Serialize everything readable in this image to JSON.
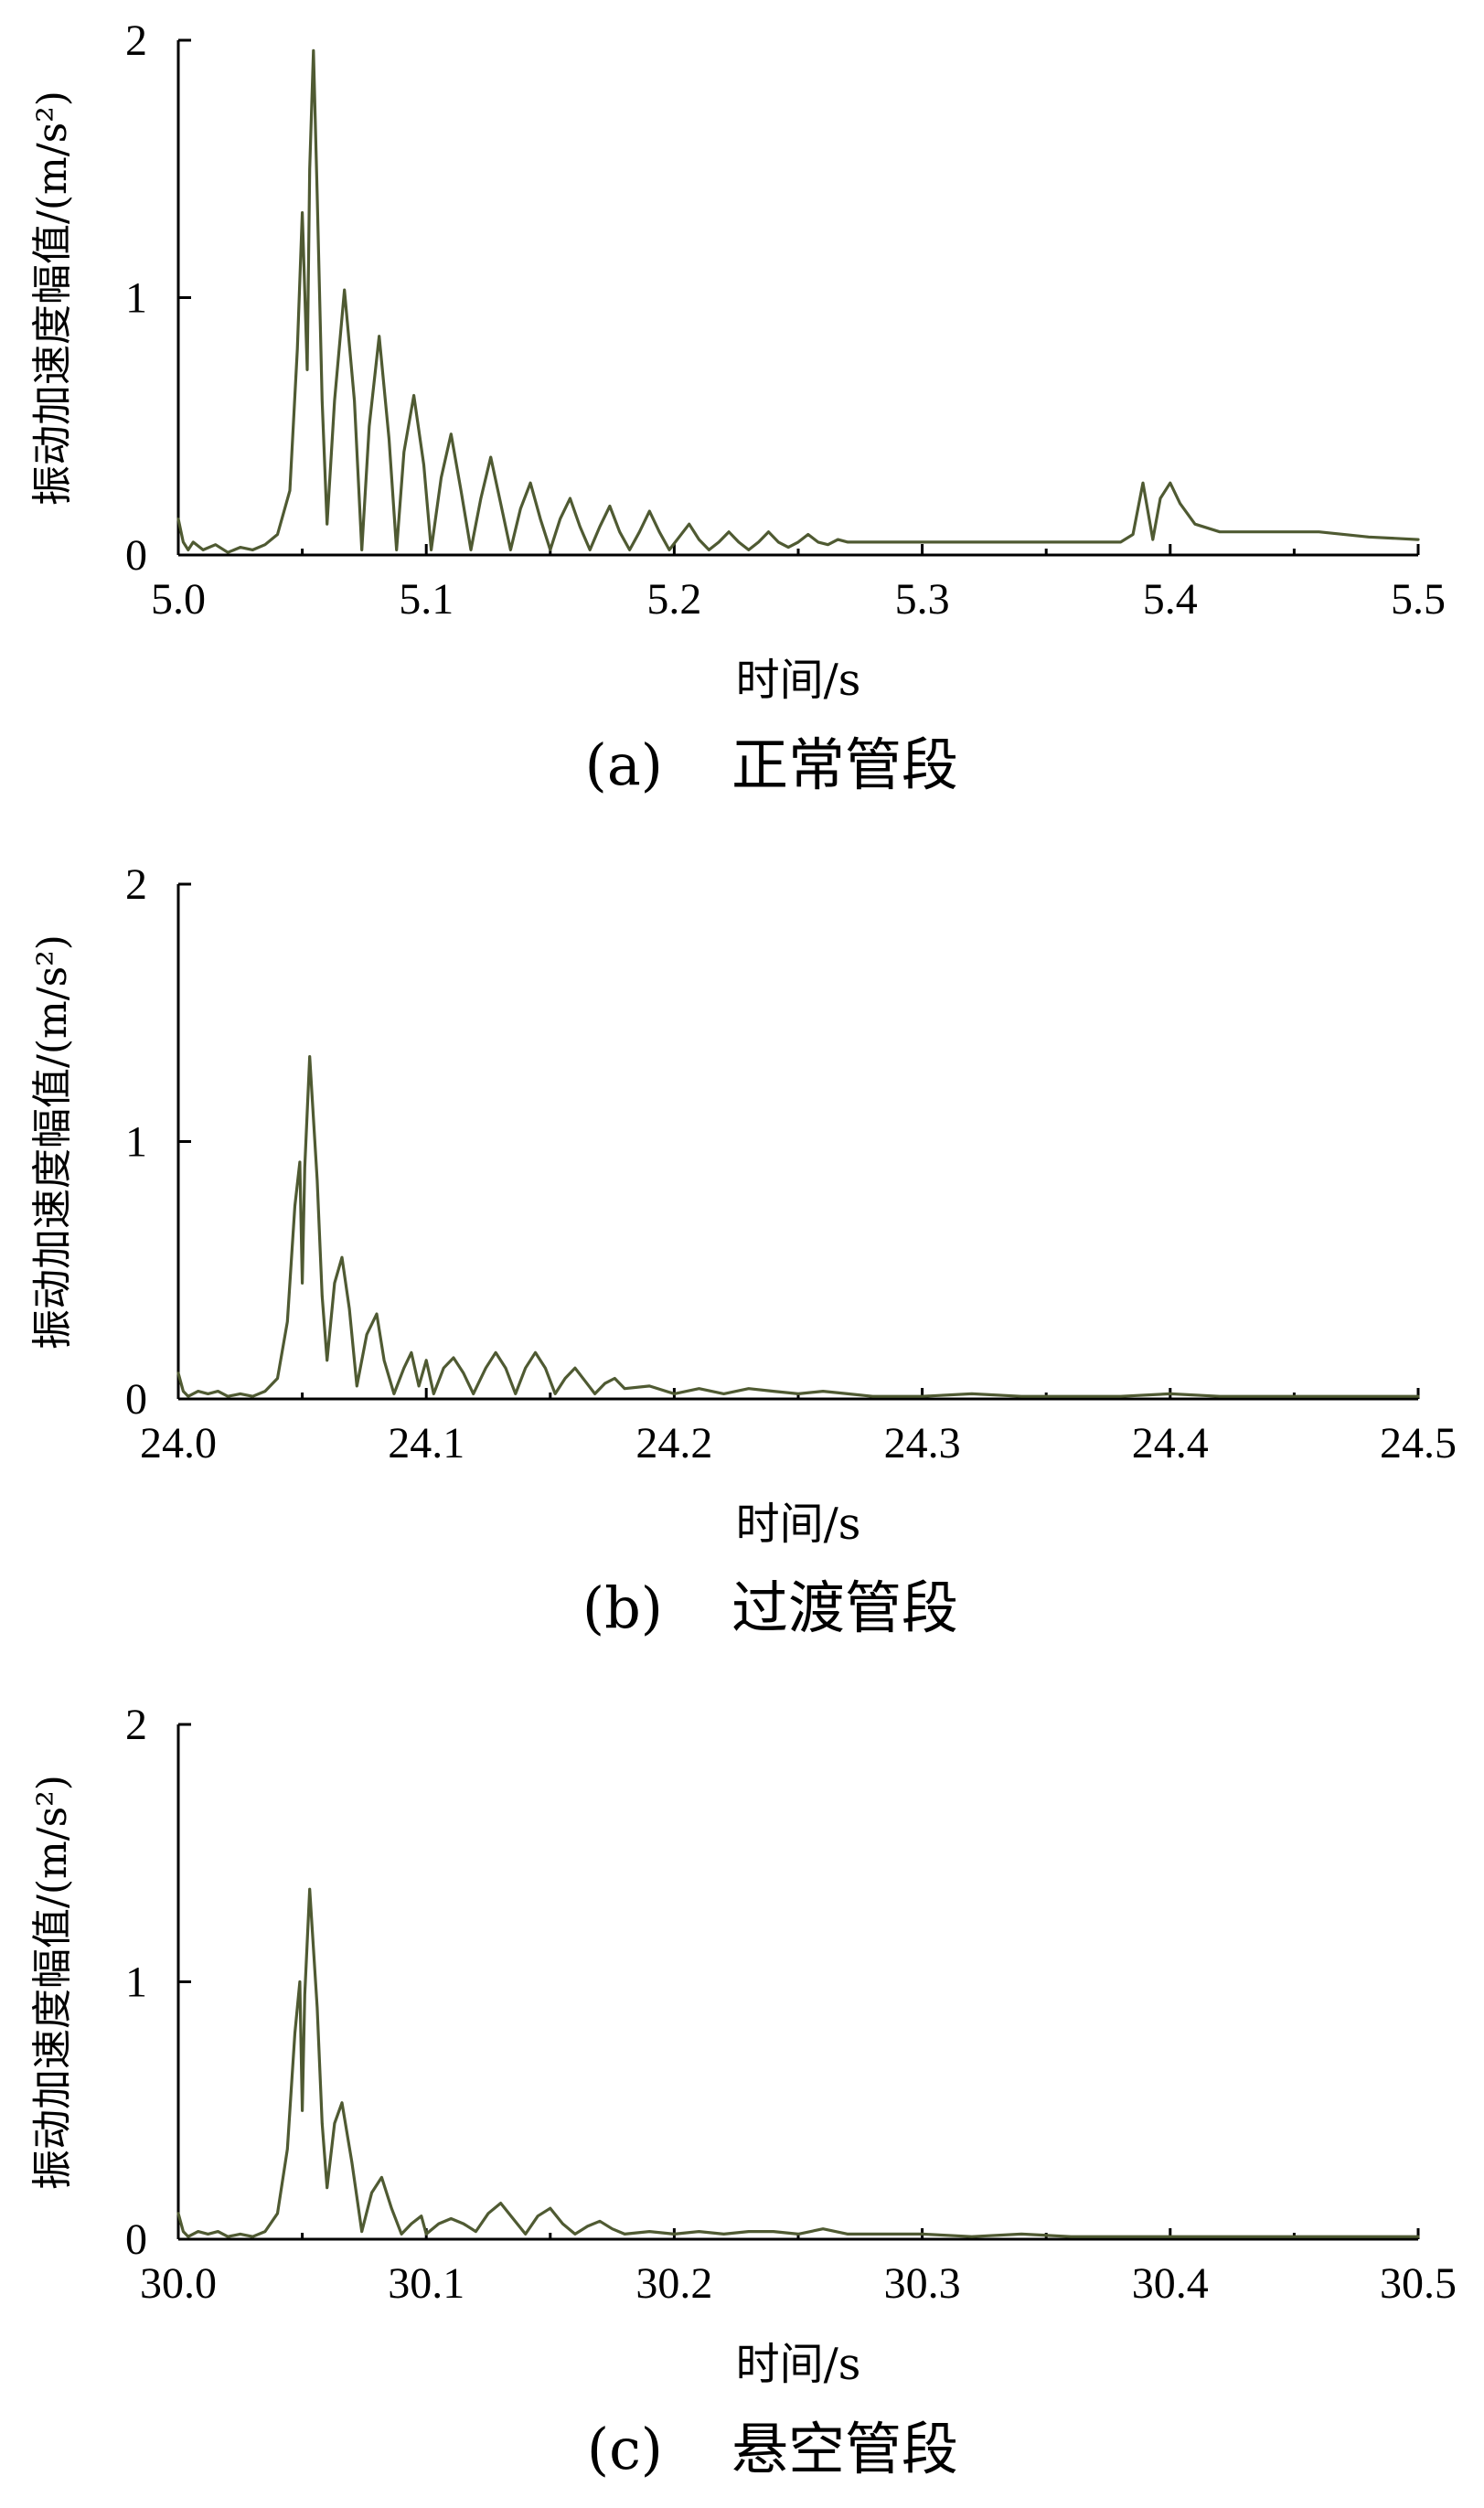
{
  "figure": {
    "panels": [
      {
        "caption_label": "(a)",
        "caption_text": "正常管段",
        "xlabel": "时间/s",
        "ylabel": "振动加速度幅值/(m/s²)",
        "xticks": [
          "5.0",
          "5.1",
          "5.2",
          "5.3",
          "5.4",
          "5.5"
        ],
        "yticks": [
          "0",
          "1",
          "2"
        ]
      },
      {
        "caption_label": "(b)",
        "caption_text": "过渡管段",
        "xlabel": "时间/s",
        "ylabel": "振动加速度幅值/(m/s²)",
        "xticks": [
          "24.0",
          "24.1",
          "24.2",
          "24.3",
          "24.4",
          "24.5"
        ],
        "yticks": [
          "0",
          "1",
          "2"
        ]
      },
      {
        "caption_label": "(c)",
        "caption_text": "悬空管段",
        "xlabel": "时间/s",
        "ylabel": "振动加速度幅值/(m/s²)",
        "xticks": [
          "30.0",
          "30.1",
          "30.2",
          "30.3",
          "30.4",
          "30.5"
        ],
        "yticks": [
          "0",
          "1",
          "2"
        ]
      }
    ]
  },
  "chart_data": [
    {
      "type": "line",
      "title": "(a) 正常管段",
      "xlabel": "时间/s",
      "ylabel": "振动加速度幅值/(m/s²)",
      "xlim": [
        5.0,
        5.5
      ],
      "ylim": [
        0,
        2
      ],
      "grid": false,
      "line_color": "#4f5a32",
      "series": [
        {
          "x": [
            5.0,
            5.002,
            5.004,
            5.006,
            5.01,
            5.015,
            5.02,
            5.025,
            5.03,
            5.035,
            5.04,
            5.045,
            5.048,
            5.05,
            5.052,
            5.053,
            5.0545,
            5.056,
            5.058,
            5.06,
            5.063,
            5.067,
            5.071,
            5.074,
            5.077,
            5.081,
            5.085,
            5.088,
            5.091,
            5.095,
            5.099,
            5.102,
            5.106,
            5.11,
            5.114,
            5.118,
            5.122,
            5.126,
            5.13,
            5.134,
            5.138,
            5.142,
            5.146,
            5.15,
            5.154,
            5.158,
            5.162,
            5.166,
            5.17,
            5.174,
            5.178,
            5.182,
            5.186,
            5.19,
            5.194,
            5.198,
            5.202,
            5.206,
            5.21,
            5.214,
            5.218,
            5.222,
            5.226,
            5.23,
            5.234,
            5.238,
            5.242,
            5.246,
            5.25,
            5.254,
            5.258,
            5.262,
            5.266,
            5.27,
            5.28,
            5.3,
            5.33,
            5.36,
            5.38,
            5.385,
            5.389,
            5.393,
            5.396,
            5.4,
            5.404,
            5.41,
            5.42,
            5.44,
            5.46,
            5.48,
            5.5
          ],
          "y": [
            0.14,
            0.05,
            0.02,
            0.05,
            0.02,
            0.04,
            0.01,
            0.03,
            0.02,
            0.04,
            0.08,
            0.25,
            0.8,
            1.33,
            0.72,
            1.5,
            1.96,
            1.4,
            0.6,
            0.12,
            0.6,
            1.03,
            0.6,
            0.02,
            0.5,
            0.85,
            0.45,
            0.02,
            0.4,
            0.62,
            0.35,
            0.02,
            0.3,
            0.47,
            0.25,
            0.02,
            0.22,
            0.38,
            0.2,
            0.02,
            0.18,
            0.28,
            0.14,
            0.02,
            0.14,
            0.22,
            0.11,
            0.02,
            0.11,
            0.19,
            0.09,
            0.02,
            0.09,
            0.17,
            0.09,
            0.02,
            0.07,
            0.12,
            0.06,
            0.02,
            0.05,
            0.09,
            0.05,
            0.02,
            0.05,
            0.09,
            0.05,
            0.03,
            0.05,
            0.08,
            0.05,
            0.04,
            0.06,
            0.05,
            0.05,
            0.05,
            0.05,
            0.05,
            0.05,
            0.08,
            0.28,
            0.06,
            0.22,
            0.28,
            0.2,
            0.12,
            0.09,
            0.09,
            0.09,
            0.07,
            0.06
          ]
        }
      ]
    },
    {
      "type": "line",
      "title": "(b) 过渡管段",
      "xlabel": "时间/s",
      "ylabel": "振动加速度幅值/(m/s²)",
      "xlim": [
        24.0,
        24.5
      ],
      "ylim": [
        0,
        2
      ],
      "grid": false,
      "line_color": "#4f5a32",
      "series": [
        {
          "x": [
            24.0,
            24.002,
            24.004,
            24.008,
            24.012,
            24.016,
            24.02,
            24.025,
            24.03,
            24.035,
            24.04,
            24.044,
            24.047,
            24.049,
            24.05,
            24.051,
            24.053,
            24.056,
            24.058,
            24.06,
            24.063,
            24.066,
            24.069,
            24.072,
            24.076,
            24.08,
            24.083,
            24.087,
            24.091,
            24.094,
            24.097,
            24.1,
            24.103,
            24.107,
            24.111,
            24.115,
            24.119,
            24.124,
            24.128,
            24.132,
            24.136,
            24.14,
            24.144,
            24.148,
            24.152,
            24.156,
            24.16,
            24.164,
            24.168,
            24.172,
            24.176,
            24.18,
            24.19,
            24.2,
            24.21,
            24.22,
            24.23,
            24.24,
            24.25,
            24.26,
            24.27,
            24.28,
            24.3,
            24.32,
            24.34,
            24.36,
            24.38,
            24.4,
            24.42,
            24.44,
            24.46,
            24.48,
            24.5
          ],
          "y": [
            0.1,
            0.03,
            0.01,
            0.03,
            0.02,
            0.03,
            0.01,
            0.02,
            0.01,
            0.03,
            0.08,
            0.3,
            0.75,
            0.92,
            0.45,
            0.9,
            1.33,
            0.85,
            0.4,
            0.15,
            0.45,
            0.55,
            0.35,
            0.05,
            0.25,
            0.33,
            0.15,
            0.02,
            0.12,
            0.18,
            0.05,
            0.15,
            0.02,
            0.12,
            0.16,
            0.1,
            0.02,
            0.12,
            0.18,
            0.12,
            0.02,
            0.12,
            0.18,
            0.12,
            0.02,
            0.08,
            0.12,
            0.07,
            0.02,
            0.06,
            0.08,
            0.04,
            0.05,
            0.02,
            0.04,
            0.02,
            0.04,
            0.03,
            0.02,
            0.03,
            0.02,
            0.01,
            0.01,
            0.02,
            0.01,
            0.01,
            0.01,
            0.02,
            0.01,
            0.01,
            0.01,
            0.01,
            0.01
          ]
        }
      ]
    },
    {
      "type": "line",
      "title": "(c) 悬空管段",
      "xlabel": "时间/s",
      "ylabel": "振动加速度幅值/(m/s²)",
      "xlim": [
        30.0,
        30.5
      ],
      "ylim": [
        0,
        2
      ],
      "grid": false,
      "line_color": "#4f5a32",
      "series": [
        {
          "x": [
            30.0,
            30.002,
            30.004,
            30.008,
            30.012,
            30.016,
            30.02,
            30.025,
            30.03,
            30.035,
            30.04,
            30.044,
            30.047,
            30.049,
            30.05,
            30.051,
            30.053,
            30.056,
            30.058,
            30.06,
            30.063,
            30.066,
            30.07,
            30.074,
            30.078,
            30.082,
            30.086,
            30.09,
            30.094,
            30.098,
            30.1,
            30.105,
            30.11,
            30.115,
            30.12,
            30.125,
            30.13,
            30.135,
            30.14,
            30.145,
            30.15,
            30.155,
            30.16,
            30.165,
            30.17,
            30.175,
            30.18,
            30.19,
            30.2,
            30.21,
            30.22,
            30.23,
            30.24,
            30.25,
            30.26,
            30.27,
            30.28,
            30.3,
            30.32,
            30.34,
            30.36,
            30.38,
            30.4,
            30.42,
            30.44,
            30.46,
            30.48,
            30.5
          ],
          "y": [
            0.1,
            0.03,
            0.01,
            0.03,
            0.02,
            0.03,
            0.01,
            0.02,
            0.01,
            0.03,
            0.1,
            0.35,
            0.8,
            1.0,
            0.5,
            0.95,
            1.36,
            0.9,
            0.45,
            0.2,
            0.45,
            0.53,
            0.3,
            0.03,
            0.18,
            0.24,
            0.12,
            0.02,
            0.06,
            0.09,
            0.02,
            0.06,
            0.08,
            0.06,
            0.03,
            0.1,
            0.14,
            0.08,
            0.02,
            0.09,
            0.12,
            0.06,
            0.02,
            0.05,
            0.07,
            0.04,
            0.02,
            0.03,
            0.02,
            0.03,
            0.02,
            0.03,
            0.03,
            0.02,
            0.04,
            0.02,
            0.02,
            0.02,
            0.01,
            0.02,
            0.01,
            0.01,
            0.01,
            0.01,
            0.01,
            0.01,
            0.01,
            0.01
          ]
        }
      ]
    }
  ]
}
